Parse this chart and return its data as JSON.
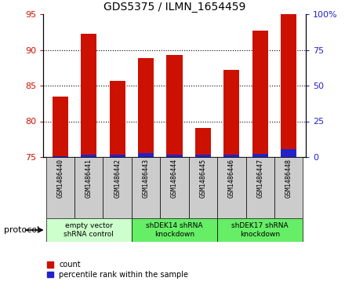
{
  "title": "GDS5375 / ILMN_1654459",
  "samples": [
    "GSM1486440",
    "GSM1486441",
    "GSM1486442",
    "GSM1486443",
    "GSM1486444",
    "GSM1486445",
    "GSM1486446",
    "GSM1486447",
    "GSM1486448"
  ],
  "count_values": [
    83.5,
    92.2,
    85.7,
    88.8,
    89.3,
    79.1,
    87.2,
    92.7,
    95.0
  ],
  "percentile_values": [
    0.5,
    1.5,
    1.5,
    2.5,
    1.5,
    1.5,
    1.5,
    2.0,
    5.5
  ],
  "ylim_left": [
    75,
    95
  ],
  "ylim_right": [
    0,
    100
  ],
  "yticks_left": [
    75,
    80,
    85,
    90,
    95
  ],
  "yticks_right": [
    0,
    25,
    50,
    75,
    100
  ],
  "bar_color_red": "#CC1100",
  "bar_color_blue": "#2222CC",
  "bar_width": 0.55,
  "groups": [
    {
      "label": "empty vector\nshRNA control",
      "start": 0,
      "end": 3,
      "color": "#ccffcc"
    },
    {
      "label": "shDEK14 shRNA\nknockdown",
      "start": 3,
      "end": 6,
      "color": "#66ee66"
    },
    {
      "label": "shDEK17 shRNA\nknockdown",
      "start": 6,
      "end": 9,
      "color": "#66ee66"
    }
  ],
  "legend_count_label": "count",
  "legend_pct_label": "percentile rank within the sample",
  "protocol_label": "protocol",
  "background_color": "#ffffff",
  "plot_bg_color": "#ffffff",
  "tick_color_left": "#CC1100",
  "tick_color_right": "#2222CC",
  "grid_color": "#000000",
  "sample_box_color": "#cccccc"
}
